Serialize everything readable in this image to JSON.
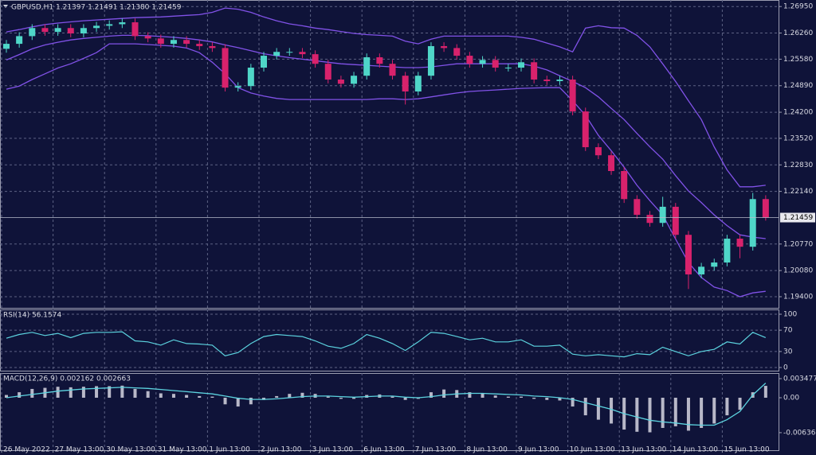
{
  "chart_data": [
    {
      "type": "candlestick",
      "title": "GBPUSD,H1  1.21397 1.21491 1.21380 1.21459",
      "categories": [
        "26 May 2022",
        null,
        null,
        null,
        "27 May 13:00",
        null,
        null,
        null,
        "30 May 13:00",
        null,
        null,
        null,
        "31 May 13:00",
        null,
        null,
        null,
        "1 Jun 13:00",
        null,
        null,
        null,
        "2 Jun 13:00",
        null,
        null,
        null,
        "3 Jun 13:00",
        null,
        null,
        null,
        "6 Jun 13:00",
        null,
        null,
        null,
        "7 Jun 13:00",
        null,
        null,
        null,
        "8 Jun 13:00",
        null,
        null,
        null,
        "9 Jun 13:00",
        null,
        null,
        null,
        "10 Jun 13:00",
        null,
        null,
        null,
        "13 Jun 13:00",
        null,
        null,
        null,
        "14 Jun 13:00",
        null,
        null,
        null,
        "15 Jun 13:00",
        null,
        null,
        null
      ],
      "open": [
        1.2585,
        1.2598,
        1.2618,
        1.2639,
        1.2629,
        1.2639,
        1.2625,
        1.2639,
        1.2645,
        1.2649,
        1.2654,
        1.2618,
        1.2612,
        1.2598,
        1.2608,
        1.2598,
        1.2592,
        1.2587,
        1.2484,
        1.2488,
        1.2536,
        1.2567,
        1.2577,
        1.2577,
        1.2571,
        1.2546,
        1.2505,
        1.2494,
        1.2515,
        1.2563,
        1.2546,
        1.2515,
        1.2474,
        1.2515,
        1.2592,
        1.2587,
        1.2567,
        1.2546,
        1.2556,
        1.2536,
        1.2536,
        1.255,
        1.2505,
        1.2501,
        1.2505,
        1.2422,
        1.2329,
        1.2308,
        1.2267,
        1.2194,
        1.2153,
        1.2132,
        1.2174,
        1.2101,
        1.1998,
        1.2018,
        1.2029,
        1.2091,
        1.207,
        1.2194
      ],
      "high": [
        1.2608,
        1.2628,
        1.2649,
        1.2649,
        1.2649,
        1.2649,
        1.2649,
        1.2655,
        1.2659,
        1.2664,
        1.2664,
        1.2628,
        1.2622,
        1.2618,
        1.2618,
        1.2608,
        1.2602,
        1.2597,
        1.2498,
        1.2546,
        1.2577,
        1.2587,
        1.2587,
        1.2587,
        1.2581,
        1.2556,
        1.2515,
        1.2525,
        1.2573,
        1.2573,
        1.2556,
        1.2525,
        1.2525,
        1.2602,
        1.2602,
        1.2597,
        1.2577,
        1.2566,
        1.2566,
        1.2546,
        1.256,
        1.256,
        1.2515,
        1.2515,
        1.2515,
        1.2432,
        1.2339,
        1.2318,
        1.2277,
        1.2204,
        1.2163,
        1.22,
        1.2184,
        1.2111,
        1.2028,
        1.2039,
        1.2101,
        1.2101,
        1.221,
        1.2204
      ],
      "low": [
        1.2575,
        1.2588,
        1.2608,
        1.2619,
        1.2619,
        1.2615,
        1.2615,
        1.2629,
        1.2635,
        1.2639,
        1.2608,
        1.2602,
        1.2588,
        1.2588,
        1.2588,
        1.2582,
        1.2577,
        1.2474,
        1.2474,
        1.2478,
        1.2526,
        1.2557,
        1.2567,
        1.2561,
        1.2536,
        1.2495,
        1.2484,
        1.2484,
        1.2505,
        1.2536,
        1.2505,
        1.244,
        1.2464,
        1.2505,
        1.2577,
        1.2557,
        1.2536,
        1.2536,
        1.2526,
        1.2526,
        1.2526,
        1.2495,
        1.2491,
        1.2491,
        1.2412,
        1.2319,
        1.2298,
        1.2257,
        1.2184,
        1.2143,
        1.2122,
        1.2122,
        1.2091,
        1.196,
        1.1988,
        1.2008,
        1.2019,
        1.204,
        1.206,
        1.2138
      ],
      "close": [
        1.2598,
        1.2618,
        1.2639,
        1.2629,
        1.2639,
        1.2625,
        1.2639,
        1.2645,
        1.2649,
        1.2654,
        1.2618,
        1.2612,
        1.2598,
        1.2608,
        1.2598,
        1.2592,
        1.2587,
        1.2484,
        1.2488,
        1.2536,
        1.2567,
        1.2577,
        1.2577,
        1.2571,
        1.2546,
        1.2505,
        1.2494,
        1.2515,
        1.2563,
        1.2546,
        1.2515,
        1.2474,
        1.2515,
        1.2592,
        1.2587,
        1.2567,
        1.2546,
        1.2556,
        1.2536,
        1.2536,
        1.255,
        1.2505,
        1.2501,
        1.2505,
        1.2422,
        1.2329,
        1.2308,
        1.2267,
        1.2194,
        1.2153,
        1.2132,
        1.2174,
        1.2101,
        1.1998,
        1.2018,
        1.2029,
        1.2091,
        1.207,
        1.2194,
        1.21459
      ],
      "upper": [
        1.2629,
        1.2635,
        1.2642,
        1.2648,
        1.2652,
        1.2655,
        1.2658,
        1.266,
        1.2662,
        1.2664,
        1.2666,
        1.2667,
        1.2668,
        1.267,
        1.2672,
        1.2674,
        1.268,
        1.2691,
        1.2688,
        1.268,
        1.2668,
        1.2658,
        1.265,
        1.2645,
        1.2639,
        1.2635,
        1.263,
        1.2625,
        1.2622,
        1.262,
        1.2618,
        1.2605,
        1.2598,
        1.261,
        1.2618,
        1.2618,
        1.2618,
        1.2618,
        1.2618,
        1.2618,
        1.2615,
        1.261,
        1.26,
        1.259,
        1.2577,
        1.2639,
        1.2645,
        1.264,
        1.2639,
        1.262,
        1.259,
        1.2546,
        1.25,
        1.245,
        1.2401,
        1.233,
        1.227,
        1.2226,
        1.2226,
        1.223
      ],
      "middle": [
        1.2556,
        1.257,
        1.2585,
        1.2595,
        1.2602,
        1.2608,
        1.2612,
        1.2615,
        1.2618,
        1.262,
        1.262,
        1.2619,
        1.2617,
        1.2615,
        1.2612,
        1.2608,
        1.2603,
        1.2595,
        1.2588,
        1.258,
        1.2572,
        1.2567,
        1.2562,
        1.2558,
        1.2554,
        1.255,
        1.2546,
        1.2544,
        1.2542,
        1.254,
        1.2538,
        1.2536,
        1.2536,
        1.2538,
        1.2542,
        1.2546,
        1.2546,
        1.2546,
        1.2546,
        1.2546,
        1.2546,
        1.254,
        1.253,
        1.2515,
        1.25,
        1.2484,
        1.246,
        1.243,
        1.2401,
        1.2365,
        1.233,
        1.2298,
        1.2255,
        1.2215,
        1.2185,
        1.2153,
        1.2125,
        1.2101,
        1.2095,
        1.2091
      ],
      "lower": [
        1.248,
        1.2488,
        1.2505,
        1.252,
        1.2535,
        1.2546,
        1.256,
        1.2575,
        1.2598,
        1.2598,
        1.2598,
        1.2596,
        1.2594,
        1.2592,
        1.2587,
        1.2575,
        1.255,
        1.252,
        1.2484,
        1.247,
        1.2462,
        1.2456,
        1.2453,
        1.2453,
        1.2453,
        1.2453,
        1.2453,
        1.2453,
        1.2453,
        1.2455,
        1.2455,
        1.2453,
        1.2455,
        1.246,
        1.2465,
        1.247,
        1.2474,
        1.2476,
        1.2478,
        1.248,
        1.2482,
        1.2483,
        1.2484,
        1.2484,
        1.245,
        1.2412,
        1.236,
        1.232,
        1.2277,
        1.223,
        1.219,
        1.2153,
        1.209,
        1.2029,
        1.199,
        1.1965,
        1.1956,
        1.194,
        1.195,
        1.1954
      ],
      "colors": {
        "up": "#4fd6c8",
        "down": "#d8226c",
        "bands": "#8152e8"
      },
      "last_price": {
        "value": 1.21459,
        "label": "1.21459"
      },
      "ylim": [
        1.1911,
        1.2712
      ],
      "yticks": [
        {
          "value": 1.2695,
          "label": "1.26950"
        },
        {
          "value": 1.2626,
          "label": "1.26260"
        },
        {
          "value": 1.2558,
          "label": "1.25580"
        },
        {
          "value": 1.2489,
          "label": "1.24890"
        },
        {
          "value": 1.242,
          "label": "1.24200"
        },
        {
          "value": 1.2352,
          "label": "1.23520"
        },
        {
          "value": 1.2283,
          "label": "1.22830"
        },
        {
          "value": 1.2214,
          "label": "1.22140"
        },
        {
          "value": 1.2077,
          "label": "1.20770"
        },
        {
          "value": 1.2008,
          "label": "1.20080"
        },
        {
          "value": 1.194,
          "label": "1.19400"
        }
      ],
      "grid": true
    },
    {
      "type": "line",
      "title": "RSI(14) 56.1574",
      "color": "#5cd3df",
      "values": [
        55,
        62,
        66,
        60,
        64,
        56,
        64,
        66,
        66,
        67,
        50,
        48,
        42,
        52,
        45,
        44,
        42,
        22,
        28,
        45,
        58,
        62,
        60,
        58,
        50,
        40,
        36,
        45,
        62,
        55,
        45,
        32,
        48,
        66,
        64,
        58,
        52,
        55,
        48,
        48,
        52,
        40,
        40,
        42,
        25,
        22,
        24,
        22,
        20,
        26,
        24,
        38,
        30,
        22,
        30,
        34,
        48,
        44,
        66,
        56.1574
      ],
      "ylim": [
        -6,
        109
      ],
      "yticks": [
        100,
        70,
        30,
        0
      ],
      "grid": true
    },
    {
      "type": "macd",
      "title": "MACD(12,26,9) 0.002162 0.002663",
      "color": "#b8b8c8",
      "signal_color": "#5cd3df",
      "values": [
        0.0005,
        0.001,
        0.0016,
        0.0018,
        0.002,
        0.0019,
        0.002,
        0.0021,
        0.0021,
        0.0022,
        0.0016,
        0.0012,
        0.0008,
        0.0007,
        0.0005,
        0.0003,
        0.0002,
        -0.0012,
        -0.0016,
        -0.0012,
        -0.0004,
        0.0003,
        0.0007,
        0.0009,
        0.0007,
        0.0002,
        -0.0002,
        -0.0002,
        0.0005,
        0.0006,
        0.0002,
        -0.0004,
        -0.0002,
        0.001,
        0.0015,
        0.0014,
        0.001,
        0.0008,
        0.0004,
        0.0002,
        0.0002,
        -0.0002,
        -0.0004,
        -0.0005,
        -0.0016,
        -0.0032,
        -0.004,
        -0.0047,
        -0.0058,
        -0.0062,
        -0.0063,
        -0.0055,
        -0.0052,
        -0.006,
        -0.0055,
        -0.0047,
        -0.0032,
        -0.0022,
        0.001,
        0.002162
      ],
      "signal": [
        0.0,
        0.0003,
        0.0006,
        0.0009,
        0.0012,
        0.0014,
        0.0016,
        0.0017,
        0.0018,
        0.0019,
        0.0018,
        0.0017,
        0.0015,
        0.0013,
        0.0011,
        0.0009,
        0.0007,
        0.0003,
        -0.0001,
        -0.0003,
        -0.0003,
        -0.0002,
        0.0,
        0.0002,
        0.0003,
        0.0003,
        0.0002,
        0.0001,
        0.0002,
        0.0003,
        0.0003,
        0.0001,
        0.0,
        0.0002,
        0.0005,
        0.0007,
        0.0008,
        0.0008,
        0.0007,
        0.0006,
        0.0005,
        0.0003,
        0.0002,
        0.0,
        -0.0003,
        -0.0009,
        -0.0015,
        -0.0021,
        -0.0029,
        -0.0035,
        -0.0041,
        -0.0044,
        -0.0046,
        -0.0049,
        -0.005,
        -0.005,
        -0.004,
        -0.0025,
        0.0005,
        0.002663
      ],
      "ylim": [
        -0.00956,
        0.00449
      ],
      "yticks": [
        0.003477,
        {
          "value": 0,
          "label": "0.00"
        },
        -0.006361
      ],
      "grid": false
    }
  ]
}
